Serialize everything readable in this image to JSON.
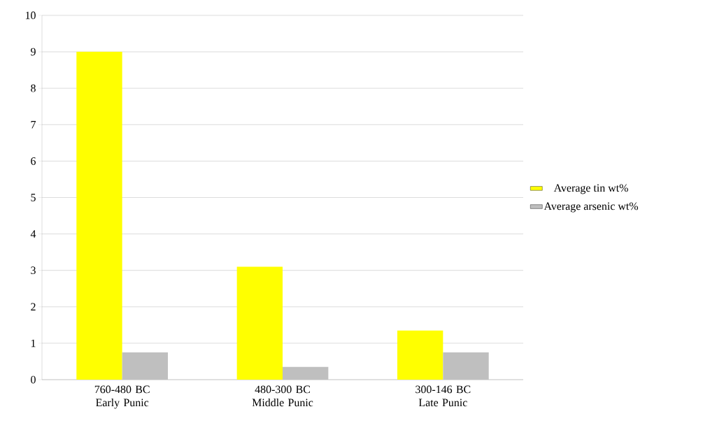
{
  "chart_data": {
    "type": "bar",
    "categories": [
      "760-480 BC Early Punic",
      "480-300 BC Middle Punic",
      "300-146 BC Late Punic"
    ],
    "series": [
      {
        "name": "Average tin wt%",
        "color": "#ffff00",
        "values": [
          9.0,
          3.1,
          1.35
        ]
      },
      {
        "name": "Average arsenic wt%",
        "color": "#bfbfbf",
        "values": [
          0.75,
          0.35,
          0.75
        ]
      }
    ],
    "ylim": [
      0,
      10
    ],
    "yticks": [
      0,
      1,
      2,
      3,
      4,
      5,
      6,
      7,
      8,
      9,
      10
    ],
    "grid": "y",
    "legend": "right"
  }
}
